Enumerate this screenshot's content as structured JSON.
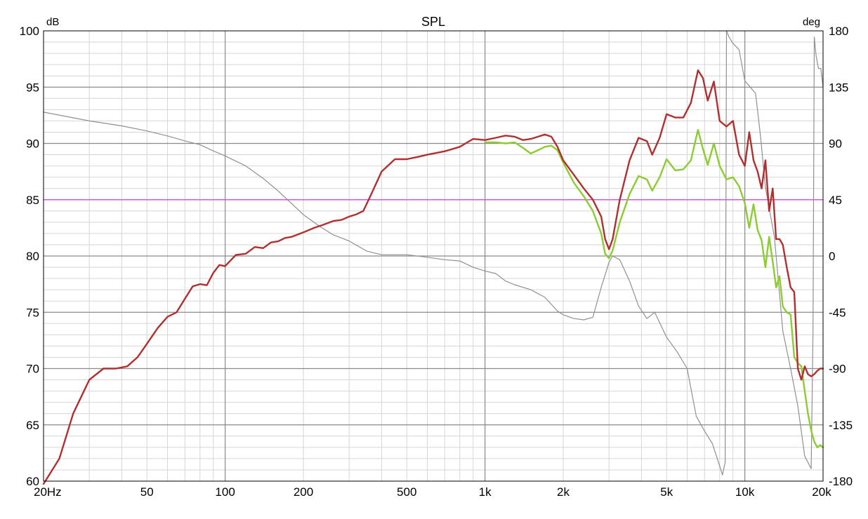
{
  "chart_data": {
    "type": "line",
    "title": "SPL",
    "left_unit": "dB",
    "right_unit": "deg",
    "x_scale": "log",
    "xlim": [
      20,
      20000
    ],
    "ylim": [
      60,
      100
    ],
    "y2lim": [
      -180,
      180
    ],
    "grid": true,
    "x_ticks": [
      {
        "value": 20,
        "label": "20Hz"
      },
      {
        "value": 50,
        "label": "50"
      },
      {
        "value": 100,
        "label": "100"
      },
      {
        "value": 200,
        "label": "200"
      },
      {
        "value": 500,
        "label": "500"
      },
      {
        "value": 1000,
        "label": "1k"
      },
      {
        "value": 2000,
        "label": "2k"
      },
      {
        "value": 5000,
        "label": "5k"
      },
      {
        "value": 10000,
        "label": "10k"
      },
      {
        "value": 20000,
        "label": "20k"
      }
    ],
    "y_ticks": [
      {
        "value": 100,
        "label": "100"
      },
      {
        "value": 95,
        "label": "95"
      },
      {
        "value": 90,
        "label": "90"
      },
      {
        "value": 85,
        "label": "85"
      },
      {
        "value": 80,
        "label": "80"
      },
      {
        "value": 75,
        "label": "75"
      },
      {
        "value": 70,
        "label": "70"
      },
      {
        "value": 65,
        "label": "65"
      },
      {
        "value": 60,
        "label": "60"
      }
    ],
    "y2_ticks": [
      {
        "value": 180,
        "label": "180"
      },
      {
        "value": 135,
        "label": "135"
      },
      {
        "value": 90,
        "label": "90"
      },
      {
        "value": 45,
        "label": "45"
      },
      {
        "value": 0,
        "label": "0"
      },
      {
        "value": -45,
        "label": "-45"
      },
      {
        "value": -90,
        "label": "-90"
      },
      {
        "value": -135,
        "label": "-135"
      },
      {
        "value": -180,
        "label": "-180"
      }
    ],
    "series": [
      {
        "color": "#b03030",
        "axis": "left",
        "x": [
          20,
          23,
          26,
          30,
          34,
          38,
          42,
          46,
          50,
          55,
          60,
          65,
          70,
          75,
          80,
          85,
          90,
          95,
          100,
          110,
          120,
          130,
          140,
          150,
          160,
          170,
          180,
          200,
          220,
          240,
          260,
          280,
          300,
          320,
          340,
          360,
          400,
          450,
          500,
          550,
          600,
          700,
          800,
          900,
          1000,
          1100,
          1200,
          1300,
          1400,
          1500,
          1600,
          1700,
          1800,
          1900,
          2000,
          2200,
          2400,
          2600,
          2800,
          2900,
          3000,
          3100,
          3300,
          3600,
          3900,
          4200,
          4400,
          4700,
          5000,
          5400,
          5800,
          6200,
          6600,
          6900,
          7200,
          7600,
          8000,
          8500,
          9000,
          9500,
          10000,
          10400,
          10800,
          11200,
          11600,
          12000,
          12400,
          12800,
          13200,
          13600,
          14000,
          14500,
          15000,
          15500,
          16000,
          16500,
          17000,
          17500,
          18000,
          18500,
          19000,
          19500,
          20000
        ],
        "y": [
          57,
          62,
          66,
          69,
          70,
          70,
          70.2,
          71,
          72.2,
          73.6,
          74.6,
          75,
          76.2,
          77.3,
          77.5,
          77.4,
          78.5,
          79.2,
          79.1,
          80.1,
          80.2,
          80.8,
          80.7,
          81.2,
          81.3,
          81.6,
          81.7,
          82.1,
          82.5,
          82.8,
          83.1,
          83.2,
          83.5,
          83.7,
          84,
          85.2,
          87.5,
          88.6,
          88.6,
          88.8,
          89,
          89.3,
          89.7,
          90.4,
          90.3,
          90.5,
          90.7,
          90.6,
          90.3,
          90.4,
          90.6,
          90.8,
          90.6,
          89.7,
          88.5,
          87.2,
          86,
          85,
          83.5,
          81.5,
          80.6,
          81.5,
          85,
          88.5,
          90.5,
          90.2,
          89,
          90.5,
          92.6,
          92.3,
          92.3,
          93.6,
          96.5,
          95.8,
          93.8,
          95.5,
          92,
          91.5,
          92,
          89,
          88,
          91,
          88.5,
          87.5,
          86,
          88.5,
          84,
          86,
          81.5,
          81.5,
          81,
          79,
          77.2,
          76.8,
          70,
          69,
          70.2,
          69.5,
          69.3,
          69.5,
          69.8,
          70,
          70
        ]
      },
      {
        "color": "#8ccc30",
        "axis": "left",
        "x": [
          1000,
          1100,
          1200,
          1300,
          1400,
          1500,
          1600,
          1700,
          1800,
          1900,
          2000,
          2200,
          2400,
          2600,
          2800,
          2900,
          3000,
          3100,
          3300,
          3600,
          3900,
          4200,
          4400,
          4700,
          5000,
          5400,
          5800,
          6200,
          6600,
          6900,
          7200,
          7600,
          8000,
          8500,
          9000,
          9500,
          10000,
          10400,
          10800,
          11200,
          11600,
          12000,
          12400,
          12800,
          13200,
          13600,
          14000,
          14500,
          15000,
          15500,
          16000,
          16500,
          17000,
          17500,
          18000,
          18500,
          19000,
          19500,
          20000
        ],
        "y": [
          90.1,
          90.1,
          90,
          90.1,
          89.6,
          89.1,
          89.4,
          89.7,
          89.8,
          89.4,
          88.3,
          86.5,
          85.3,
          84,
          82,
          80.2,
          79.8,
          80.5,
          83,
          85.5,
          87.1,
          86.8,
          85.8,
          87,
          88.6,
          87.6,
          87.7,
          88.5,
          91.2,
          89.5,
          88.1,
          90,
          88,
          86.8,
          87,
          86.2,
          84.7,
          82.5,
          84.6,
          82.3,
          81.4,
          79,
          81.7,
          79.5,
          77.2,
          78.2,
          75.5,
          75,
          74.8,
          71,
          70.5,
          70.2,
          68,
          66,
          64.5,
          63.5,
          63,
          63.2,
          63
        ]
      },
      {
        "color": "#909090",
        "axis": "right",
        "x": [
          20,
          30,
          40,
          50,
          60,
          70,
          80,
          90,
          100,
          120,
          140,
          160,
          180,
          200,
          230,
          260,
          300,
          350,
          400,
          500,
          600,
          700,
          800,
          900,
          1000,
          1100,
          1200,
          1300,
          1500,
          1700,
          1900,
          2000,
          2200,
          2400,
          2600,
          2800,
          2900,
          3000,
          3100,
          3300,
          3600,
          3900,
          4200,
          4500,
          5000,
          5500,
          6000,
          6500,
          7000,
          7500,
          8000,
          8200,
          8400,
          8500,
          8700,
          9000,
          9500,
          10000,
          10500,
          11000,
          11500,
          12000,
          13000,
          14000,
          15000,
          16000,
          17000,
          18000,
          18300,
          18500,
          18800,
          19200,
          19600,
          20000
        ],
        "y": [
          115,
          108,
          104,
          100,
          96,
          92,
          89,
          84,
          80,
          72,
          62,
          52,
          42,
          33,
          24,
          17,
          12,
          4,
          1,
          1,
          -1,
          -3,
          -4,
          -9,
          -12,
          -14,
          -20,
          -23,
          -27,
          -33,
          -44,
          -47,
          -50,
          -51,
          -49,
          -25,
          -15,
          -5,
          0,
          -3,
          -20,
          -40,
          -50,
          -45,
          -65,
          -77,
          -90,
          -128,
          -140,
          -150,
          -168,
          -175,
          -165,
          180,
          175,
          170,
          165,
          140,
          135,
          130,
          95,
          55,
          15,
          -60,
          -90,
          -120,
          -160,
          -170,
          -60,
          175,
          160,
          150,
          150,
          135
        ]
      },
      {
        "color": "#e040e8",
        "axis": "left",
        "x": [
          20,
          20000
        ],
        "y": [
          85,
          85
        ]
      }
    ]
  }
}
